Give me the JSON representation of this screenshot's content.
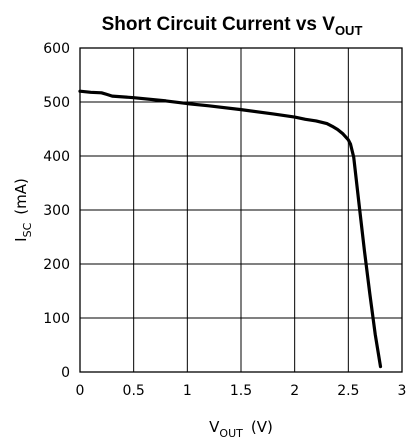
{
  "chart_data": {
    "type": "line",
    "title": {
      "main": "Short Circuit Current vs V",
      "sub": "OUT"
    },
    "xlabel": {
      "main": "V",
      "sub": "OUT",
      "unit": "(V)"
    },
    "ylabel": {
      "main": "I",
      "sub": "SC",
      "unit": "(mA)"
    },
    "xlim": [
      0,
      3
    ],
    "ylim": [
      0,
      600
    ],
    "xticks": [
      0,
      0.5,
      1,
      1.5,
      2,
      2.5,
      3
    ],
    "xtick_labels": [
      "0",
      "0.5",
      "1",
      "1.5",
      "2",
      "2.5",
      "3"
    ],
    "yticks": [
      0,
      100,
      200,
      300,
      400,
      500,
      600
    ],
    "ytick_labels": [
      "0",
      "100",
      "200",
      "300",
      "400",
      "500",
      "600"
    ],
    "grid": true,
    "line_color": "#000000",
    "series": [
      {
        "x": [
          0,
          0.1,
          0.2,
          0.25,
          0.3,
          0.5,
          0.8,
          1.0,
          1.2,
          1.5,
          1.8,
          2.0,
          2.1,
          2.2,
          2.3,
          2.35,
          2.4,
          2.45,
          2.5,
          2.52,
          2.55,
          2.6,
          2.65,
          2.7,
          2.75,
          2.8
        ],
        "y": [
          520,
          518,
          517,
          514,
          511,
          508,
          502,
          497,
          493,
          486,
          478,
          472,
          468,
          465,
          460,
          455,
          449,
          441,
          430,
          422,
          398,
          310,
          225,
          145,
          70,
          10
        ]
      }
    ]
  }
}
